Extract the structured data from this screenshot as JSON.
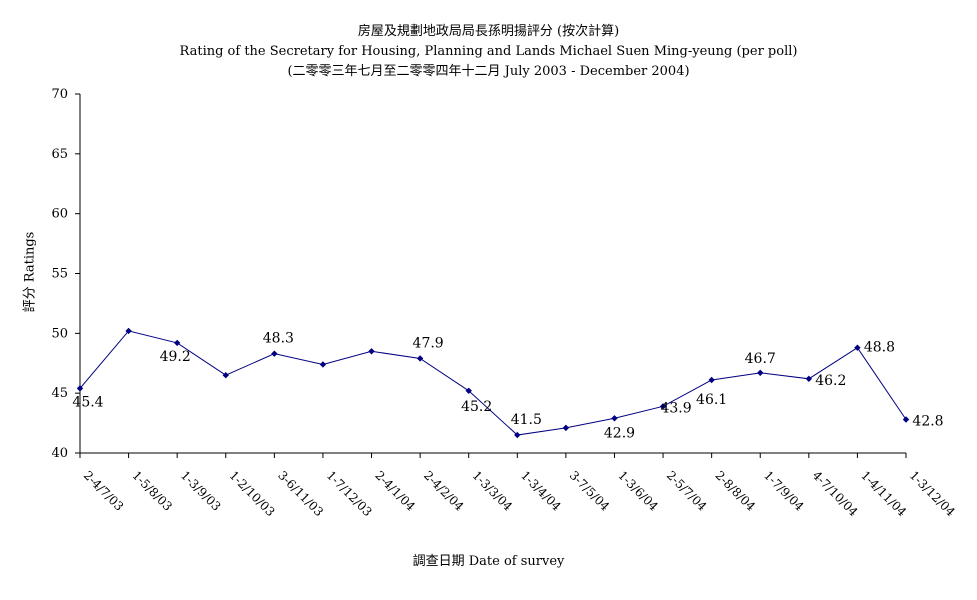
{
  "chart_data": {
    "type": "line",
    "title_line1": "房屋及規劃地政局局長孫明揚評分 (按次計算)",
    "title_line2": "Rating of the Secretary for Housing, Planning and Lands Michael Suen Ming-yeung (per poll)",
    "title_line3": "(二零零三年七月至二零零四年十二月 July 2003 - December 2004)",
    "xlabel": "調查日期 Date of survey",
    "ylabel": "評分 Ratings",
    "ylim": [
      40,
      70
    ],
    "yticks": [
      40,
      45,
      50,
      55,
      60,
      65,
      70
    ],
    "categories": [
      "2-4/7/03",
      "1-5/8/03",
      "1-3/9/03",
      "1-2/10/03",
      "3-6/11/03",
      "1-7/12/03",
      "2-4/1/04",
      "2-4/2/04",
      "1-3/3/04",
      "1-3/4/04",
      "3-7/5/04",
      "1-3/6/04",
      "2-5/7/04",
      "2-8/8/04",
      "1-7/9/04",
      "4-7/10/04",
      "1-4/11/04",
      "1-3/12/04"
    ],
    "values": [
      45.4,
      50.2,
      49.2,
      46.5,
      48.3,
      47.4,
      48.5,
      47.9,
      45.2,
      41.5,
      42.1,
      42.9,
      43.9,
      46.1,
      46.7,
      46.2,
      48.8,
      42.8
    ],
    "data_labels": [
      {
        "index": 0,
        "text": "45.4"
      },
      {
        "index": 2,
        "text": "49.2"
      },
      {
        "index": 4,
        "text": "48.3"
      },
      {
        "index": 7,
        "text": "47.9"
      },
      {
        "index": 8,
        "text": "45.2"
      },
      {
        "index": 9,
        "text": "41.5"
      },
      {
        "index": 11,
        "text": "42.9"
      },
      {
        "index": 12,
        "text": "43.9"
      },
      {
        "index": 13,
        "text": "46.1"
      },
      {
        "index": 14,
        "text": "46.7"
      },
      {
        "index": 15,
        "text": "46.2"
      },
      {
        "index": 16,
        "text": "48.8"
      },
      {
        "index": 17,
        "text": "42.8"
      }
    ],
    "line_color": "#000080",
    "grid": false,
    "legend": "none"
  }
}
